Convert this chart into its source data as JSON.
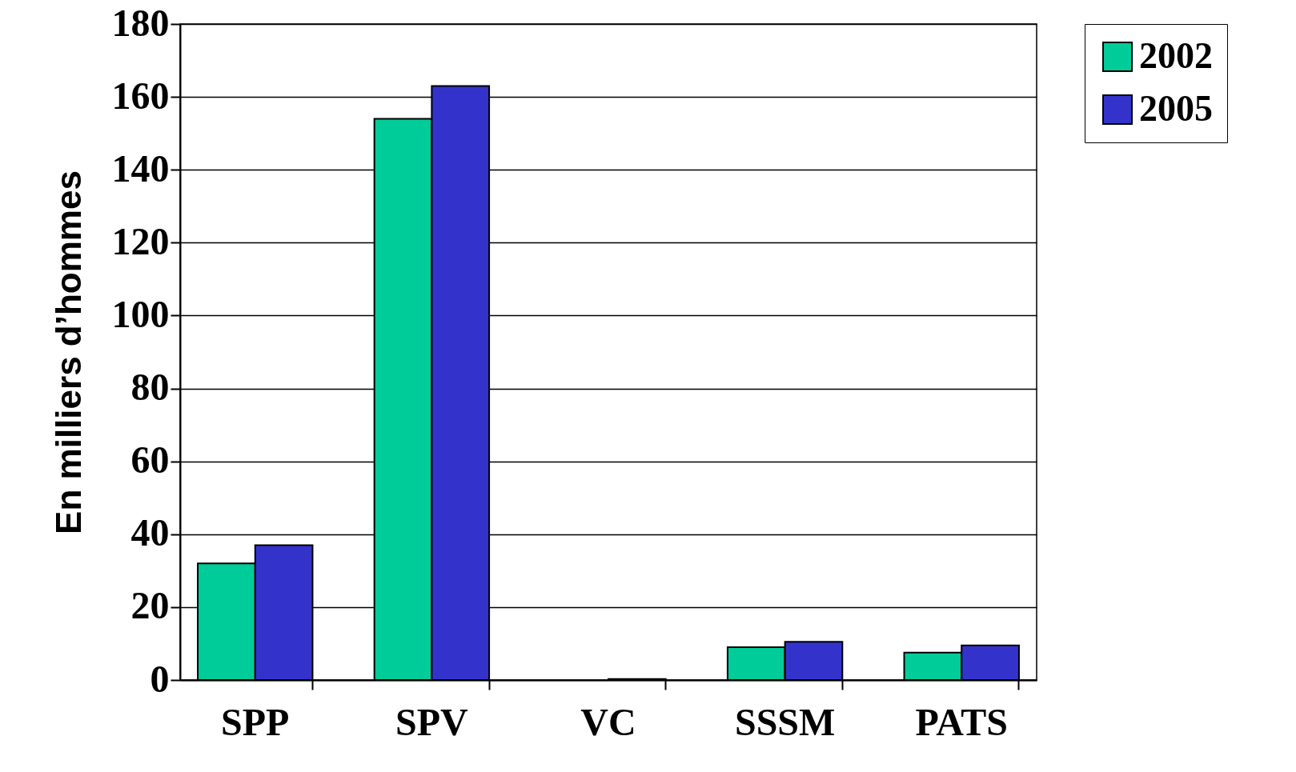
{
  "chart_data": {
    "type": "bar",
    "ylabel": "En milliers d’hommes",
    "categories": [
      "SPP",
      "SPV",
      "VC",
      "SSSM",
      "PATS"
    ],
    "series": [
      {
        "name": "2002",
        "color": "#00cc99",
        "values": [
          32,
          154,
          null,
          9,
          7.5
        ]
      },
      {
        "name": "2005",
        "color": "#3333cc",
        "values": [
          37,
          163,
          0.3,
          10.5,
          9.5
        ]
      }
    ],
    "ylim": [
      0,
      180
    ],
    "yticks": [
      0,
      20,
      40,
      60,
      80,
      100,
      120,
      140,
      160,
      180
    ],
    "grid": "y",
    "legend": "right"
  }
}
